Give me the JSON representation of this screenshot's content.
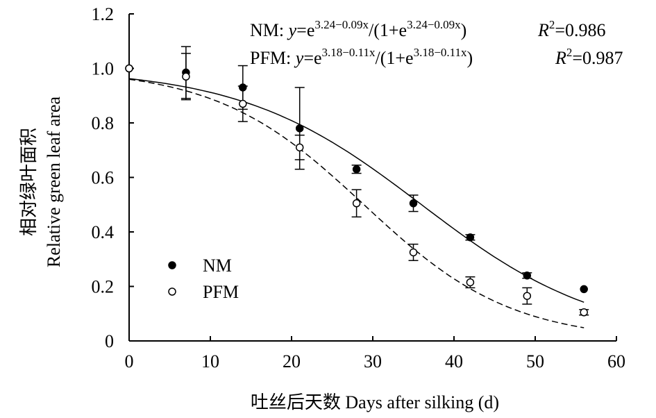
{
  "chart_data": {
    "type": "scatter",
    "title": "",
    "xlabel": "吐丝后天数 Days after silking (d)",
    "ylabel_cn": "相对绿叶面积",
    "ylabel_en": "Relative green leaf area",
    "xlim": [
      0,
      60
    ],
    "ylim": [
      0,
      1.2
    ],
    "xticks": [
      "0",
      "10",
      "20",
      "30",
      "40",
      "50",
      "60"
    ],
    "yticks": [
      "0",
      "0.2",
      "0.4",
      "0.6",
      "0.8",
      "1.0",
      "1.2"
    ],
    "grid": false,
    "legend_position": "bottom-left",
    "series": [
      {
        "name": "NM",
        "marker": "filled-circle",
        "x": [
          0,
          7,
          14,
          21,
          28,
          35,
          42,
          49,
          56
        ],
        "y": [
          1.0,
          0.985,
          0.93,
          0.78,
          0.63,
          0.505,
          0.38,
          0.24,
          0.19
        ],
        "err": [
          0,
          0.095,
          0.08,
          0.15,
          0.015,
          0.03,
          0.01,
          0.01,
          0
        ],
        "fit": {
          "a": 3.24,
          "b": 0.09,
          "style": "solid"
        },
        "equation": {
          "label": "NM: ",
          "y": "y",
          "eq": "=e",
          "exp": "3.24−0.09x",
          "mid": "/(1+e",
          "end": ")",
          "r2_label": "R",
          "r2_sup": "2",
          "r2_value": "=0.986"
        }
      },
      {
        "name": "PFM",
        "marker": "open-circle",
        "x": [
          0,
          7,
          14,
          21,
          28,
          35,
          42,
          49,
          56
        ],
        "y": [
          1.0,
          0.97,
          0.87,
          0.71,
          0.505,
          0.325,
          0.215,
          0.165,
          0.105
        ],
        "err": [
          0,
          0.085,
          0.065,
          0.045,
          0.05,
          0.03,
          0.02,
          0.03,
          0.01
        ],
        "fit": {
          "a": 3.18,
          "b": 0.11,
          "style": "dashed"
        },
        "equation": {
          "label": "PFM: ",
          "y": "y",
          "eq": "=e",
          "exp": "3.18−0.11x",
          "mid": "/(1+e",
          "end": ")",
          "r2_label": "R",
          "r2_sup": "2",
          "r2_value": "=0.987"
        }
      }
    ]
  }
}
